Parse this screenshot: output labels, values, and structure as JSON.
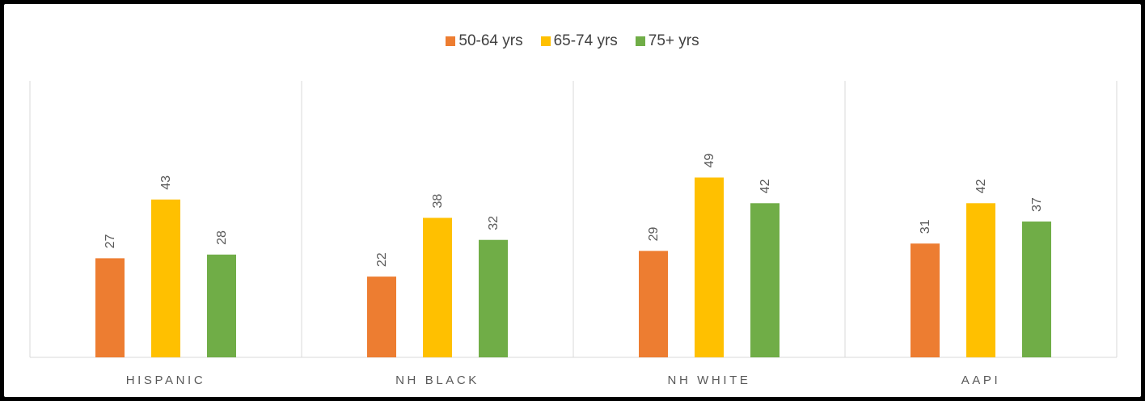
{
  "chart_data": {
    "type": "bar",
    "categories": [
      "HISPANIC",
      "NH BLACK",
      "NH WHITE",
      "AAPI"
    ],
    "series": [
      {
        "name": "50-64 yrs",
        "values": [
          27,
          22,
          29,
          31
        ],
        "color": "#ED7D31"
      },
      {
        "name": "65-74 yrs",
        "values": [
          43,
          38,
          49,
          42
        ],
        "color": "#FFC000"
      },
      {
        "name": "75+ yrs",
        "values": [
          28,
          32,
          42,
          37
        ],
        "color": "#70AD47"
      }
    ],
    "title": "",
    "xlabel": "",
    "ylabel": "",
    "ylim": [
      0,
      75
    ],
    "legend": "top-center",
    "grid": "vertical category separators",
    "data_labels": "rotated -90°"
  }
}
